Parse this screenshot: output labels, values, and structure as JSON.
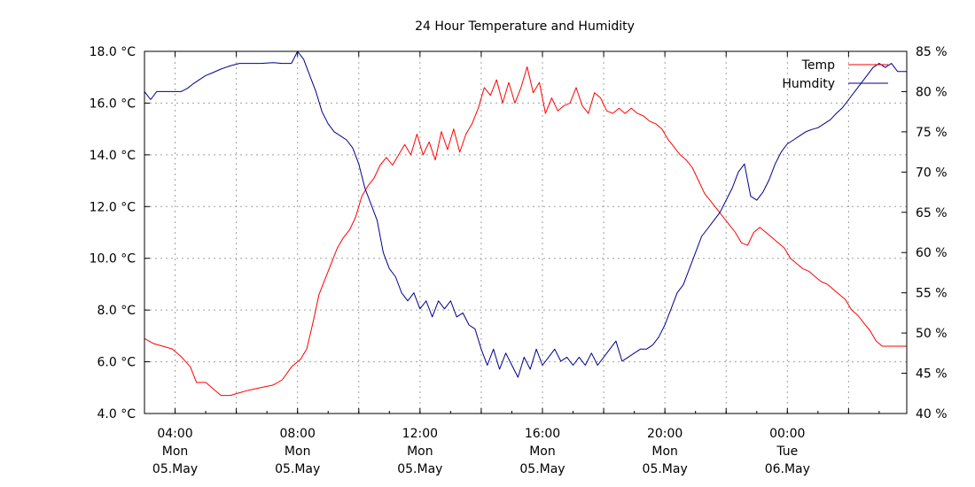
{
  "chart_data": {
    "type": "line",
    "title": "24 Hour Temperature and Humidity",
    "x_hours": [
      3,
      27.9
    ],
    "y_left": {
      "range": [
        4,
        18
      ],
      "step": 2,
      "unit": "°C",
      "ticks": [
        "4.0 °C",
        "6.0 °C",
        "8.0 °C",
        "10.0 °C",
        "12.0 °C",
        "14.0 °C",
        "16.0 °C",
        "18.0 °C"
      ]
    },
    "y_right": {
      "range": [
        40,
        85
      ],
      "step": 5,
      "unit": "%",
      "ticks": [
        "40 %",
        "45 %",
        "50 %",
        "55 %",
        "60 %",
        "65 %",
        "70 %",
        "75 %",
        "80 %",
        "85 %"
      ]
    },
    "x_ticks": [
      {
        "h": 4,
        "time": "04:00",
        "day": "Mon",
        "date": "05.May"
      },
      {
        "h": 8,
        "time": "08:00",
        "day": "Mon",
        "date": "05.May"
      },
      {
        "h": 12,
        "time": "12:00",
        "day": "Mon",
        "date": "05.May"
      },
      {
        "h": 16,
        "time": "16:00",
        "day": "Mon",
        "date": "05.May"
      },
      {
        "h": 20,
        "time": "20:00",
        "day": "Mon",
        "date": "05.May"
      },
      {
        "h": 24,
        "time": "00:00",
        "day": "Tue",
        "date": "06.May"
      }
    ],
    "grid": true,
    "legend_position": "top-right",
    "series": [
      {
        "name": "Temp",
        "axis": "left",
        "color": "#ff0000",
        "points": [
          [
            3.0,
            6.9
          ],
          [
            3.3,
            6.7
          ],
          [
            3.6,
            6.6
          ],
          [
            3.9,
            6.5
          ],
          [
            4.2,
            6.2
          ],
          [
            4.5,
            5.8
          ],
          [
            4.7,
            5.2
          ],
          [
            5.0,
            5.2
          ],
          [
            5.3,
            4.9
          ],
          [
            5.5,
            4.7
          ],
          [
            5.8,
            4.7
          ],
          [
            6.1,
            4.8
          ],
          [
            6.4,
            4.9
          ],
          [
            6.8,
            5.0
          ],
          [
            7.2,
            5.1
          ],
          [
            7.5,
            5.3
          ],
          [
            7.8,
            5.8
          ],
          [
            8.1,
            6.1
          ],
          [
            8.3,
            6.5
          ],
          [
            8.5,
            7.5
          ],
          [
            8.7,
            8.6
          ],
          [
            8.9,
            9.2
          ],
          [
            9.1,
            9.8
          ],
          [
            9.3,
            10.4
          ],
          [
            9.5,
            10.8
          ],
          [
            9.7,
            11.1
          ],
          [
            9.9,
            11.6
          ],
          [
            10.1,
            12.4
          ],
          [
            10.3,
            12.8
          ],
          [
            10.5,
            13.1
          ],
          [
            10.7,
            13.6
          ],
          [
            10.9,
            13.9
          ],
          [
            11.1,
            13.6
          ],
          [
            11.3,
            14.0
          ],
          [
            11.5,
            14.4
          ],
          [
            11.7,
            14.0
          ],
          [
            11.9,
            14.8
          ],
          [
            12.1,
            14.0
          ],
          [
            12.3,
            14.5
          ],
          [
            12.5,
            13.8
          ],
          [
            12.7,
            14.9
          ],
          [
            12.9,
            14.2
          ],
          [
            13.1,
            15.0
          ],
          [
            13.3,
            14.1
          ],
          [
            13.5,
            14.8
          ],
          [
            13.7,
            15.2
          ],
          [
            13.9,
            15.8
          ],
          [
            14.1,
            16.6
          ],
          [
            14.3,
            16.3
          ],
          [
            14.5,
            16.9
          ],
          [
            14.7,
            16.0
          ],
          [
            14.9,
            16.8
          ],
          [
            15.1,
            16.0
          ],
          [
            15.3,
            16.6
          ],
          [
            15.5,
            17.4
          ],
          [
            15.7,
            16.4
          ],
          [
            15.9,
            16.8
          ],
          [
            16.1,
            15.6
          ],
          [
            16.3,
            16.2
          ],
          [
            16.5,
            15.7
          ],
          [
            16.7,
            15.9
          ],
          [
            16.9,
            16.0
          ],
          [
            17.1,
            16.6
          ],
          [
            17.3,
            15.9
          ],
          [
            17.5,
            15.6
          ],
          [
            17.7,
            16.4
          ],
          [
            17.9,
            16.2
          ],
          [
            18.1,
            15.7
          ],
          [
            18.3,
            15.6
          ],
          [
            18.5,
            15.8
          ],
          [
            18.7,
            15.6
          ],
          [
            18.9,
            15.8
          ],
          [
            19.1,
            15.6
          ],
          [
            19.3,
            15.5
          ],
          [
            19.5,
            15.3
          ],
          [
            19.7,
            15.2
          ],
          [
            19.9,
            15.0
          ],
          [
            20.1,
            14.6
          ],
          [
            20.3,
            14.3
          ],
          [
            20.5,
            14.0
          ],
          [
            20.7,
            13.8
          ],
          [
            20.9,
            13.5
          ],
          [
            21.1,
            13.0
          ],
          [
            21.3,
            12.5
          ],
          [
            21.5,
            12.2
          ],
          [
            21.7,
            11.9
          ],
          [
            21.9,
            11.6
          ],
          [
            22.1,
            11.3
          ],
          [
            22.3,
            11.0
          ],
          [
            22.5,
            10.6
          ],
          [
            22.7,
            10.5
          ],
          [
            22.9,
            11.0
          ],
          [
            23.1,
            11.2
          ],
          [
            23.3,
            11.0
          ],
          [
            23.5,
            10.8
          ],
          [
            23.7,
            10.6
          ],
          [
            23.9,
            10.4
          ],
          [
            24.1,
            10.0
          ],
          [
            24.3,
            9.8
          ],
          [
            24.5,
            9.6
          ],
          [
            24.7,
            9.5
          ],
          [
            24.9,
            9.3
          ],
          [
            25.1,
            9.1
          ],
          [
            25.3,
            9.0
          ],
          [
            25.5,
            8.8
          ],
          [
            25.7,
            8.6
          ],
          [
            25.9,
            8.4
          ],
          [
            26.1,
            8.0
          ],
          [
            26.3,
            7.8
          ],
          [
            26.5,
            7.5
          ],
          [
            26.7,
            7.2
          ],
          [
            26.9,
            6.8
          ],
          [
            27.1,
            6.6
          ],
          [
            27.3,
            6.6
          ],
          [
            27.5,
            6.6
          ],
          [
            27.7,
            6.6
          ],
          [
            27.9,
            6.6
          ]
        ]
      },
      {
        "name": "Humdity",
        "axis": "right",
        "color": "#00008b",
        "points": [
          [
            3.0,
            80.0
          ],
          [
            3.2,
            79.0
          ],
          [
            3.4,
            80.0
          ],
          [
            3.8,
            80.0
          ],
          [
            4.2,
            80.0
          ],
          [
            4.4,
            80.4
          ],
          [
            4.6,
            81.0
          ],
          [
            4.8,
            81.5
          ],
          [
            5.0,
            82.0
          ],
          [
            5.2,
            82.3
          ],
          [
            5.5,
            82.8
          ],
          [
            5.8,
            83.2
          ],
          [
            6.1,
            83.5
          ],
          [
            6.4,
            83.5
          ],
          [
            6.8,
            83.5
          ],
          [
            7.2,
            83.6
          ],
          [
            7.5,
            83.5
          ],
          [
            7.8,
            83.5
          ],
          [
            8.0,
            85.0
          ],
          [
            8.2,
            84.0
          ],
          [
            8.4,
            82.0
          ],
          [
            8.6,
            80.0
          ],
          [
            8.8,
            77.5
          ],
          [
            9.0,
            76.0
          ],
          [
            9.2,
            75.0
          ],
          [
            9.4,
            74.5
          ],
          [
            9.6,
            74.0
          ],
          [
            9.8,
            73.0
          ],
          [
            10.0,
            71.0
          ],
          [
            10.2,
            68.0
          ],
          [
            10.4,
            66.0
          ],
          [
            10.6,
            64.0
          ],
          [
            10.8,
            60.0
          ],
          [
            11.0,
            58.0
          ],
          [
            11.2,
            57.0
          ],
          [
            11.4,
            55.0
          ],
          [
            11.6,
            54.0
          ],
          [
            11.8,
            55.0
          ],
          [
            12.0,
            53.0
          ],
          [
            12.2,
            54.0
          ],
          [
            12.4,
            52.0
          ],
          [
            12.6,
            54.0
          ],
          [
            12.8,
            53.0
          ],
          [
            13.0,
            54.0
          ],
          [
            13.2,
            52.0
          ],
          [
            13.4,
            52.5
          ],
          [
            13.6,
            51.0
          ],
          [
            13.8,
            50.5
          ],
          [
            14.0,
            48.0
          ],
          [
            14.2,
            46.0
          ],
          [
            14.4,
            48.0
          ],
          [
            14.6,
            45.5
          ],
          [
            14.8,
            47.5
          ],
          [
            15.0,
            46.0
          ],
          [
            15.2,
            44.5
          ],
          [
            15.4,
            47.0
          ],
          [
            15.6,
            45.5
          ],
          [
            15.8,
            48.0
          ],
          [
            16.0,
            46.0
          ],
          [
            16.2,
            47.0
          ],
          [
            16.4,
            48.0
          ],
          [
            16.6,
            46.5
          ],
          [
            16.8,
            47.0
          ],
          [
            17.0,
            46.0
          ],
          [
            17.2,
            47.0
          ],
          [
            17.4,
            46.0
          ],
          [
            17.6,
            47.5
          ],
          [
            17.8,
            46.0
          ],
          [
            18.0,
            47.0
          ],
          [
            18.2,
            48.0
          ],
          [
            18.4,
            49.0
          ],
          [
            18.6,
            46.5
          ],
          [
            18.8,
            47.0
          ],
          [
            19.0,
            47.5
          ],
          [
            19.2,
            48.0
          ],
          [
            19.4,
            48.0
          ],
          [
            19.6,
            48.5
          ],
          [
            19.8,
            49.5
          ],
          [
            20.0,
            51.0
          ],
          [
            20.2,
            53.0
          ],
          [
            20.4,
            55.0
          ],
          [
            20.6,
            56.0
          ],
          [
            20.8,
            58.0
          ],
          [
            21.0,
            60.0
          ],
          [
            21.2,
            62.0
          ],
          [
            21.4,
            63.0
          ],
          [
            21.6,
            64.0
          ],
          [
            21.8,
            65.0
          ],
          [
            22.0,
            66.5
          ],
          [
            22.2,
            68.0
          ],
          [
            22.4,
            70.0
          ],
          [
            22.6,
            71.0
          ],
          [
            22.8,
            67.0
          ],
          [
            23.0,
            66.5
          ],
          [
            23.2,
            67.5
          ],
          [
            23.4,
            69.0
          ],
          [
            23.6,
            71.0
          ],
          [
            23.8,
            72.5
          ],
          [
            24.0,
            73.5
          ],
          [
            24.2,
            74.0
          ],
          [
            24.4,
            74.5
          ],
          [
            24.6,
            75.0
          ],
          [
            24.8,
            75.3
          ],
          [
            25.0,
            75.5
          ],
          [
            25.2,
            76.0
          ],
          [
            25.4,
            76.5
          ],
          [
            25.6,
            77.3
          ],
          [
            25.8,
            78.0
          ],
          [
            26.0,
            79.0
          ],
          [
            26.2,
            80.0
          ],
          [
            26.4,
            81.0
          ],
          [
            26.6,
            82.0
          ],
          [
            26.8,
            83.0
          ],
          [
            27.0,
            83.5
          ],
          [
            27.2,
            83.0
          ],
          [
            27.4,
            83.5
          ],
          [
            27.6,
            82.5
          ],
          [
            27.9,
            82.5
          ]
        ]
      }
    ]
  }
}
